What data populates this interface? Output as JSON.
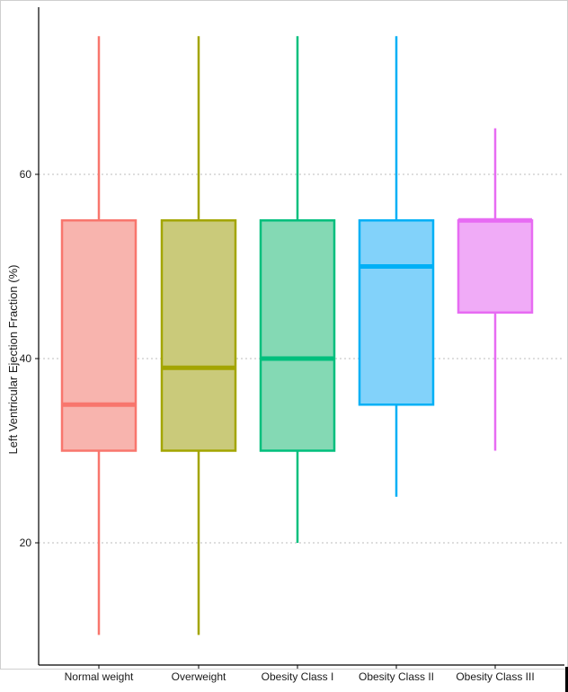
{
  "chart_data": {
    "type": "box",
    "ylabel": "Left Ventricular Ejection Fraction (%)",
    "xlabel": "",
    "ylim": [
      5,
      78
    ],
    "yticks": [
      20,
      40,
      60
    ],
    "grid": "horizontal dotted at y ticks",
    "categories": [
      "Normal weight",
      "Overweight",
      "Obesity Class I",
      "Obesity Class II",
      "Obesity Class III"
    ],
    "boxes": [
      {
        "category": "Normal weight",
        "whisker_low": 10,
        "q1": 30,
        "median": 35,
        "q3": 55,
        "whisker_high": 75,
        "color": "#F8766D",
        "fill": "#F8B4AE"
      },
      {
        "category": "Overweight",
        "whisker_low": 10,
        "q1": 30,
        "median": 39,
        "q3": 55,
        "whisker_high": 75,
        "color": "#A3A500",
        "fill": "#CACA7A"
      },
      {
        "category": "Obesity Class I",
        "whisker_low": 20,
        "q1": 30,
        "median": 40,
        "q3": 55,
        "whisker_high": 75,
        "color": "#00BF7D",
        "fill": "#84D9B4"
      },
      {
        "category": "Obesity Class II",
        "whisker_low": 25,
        "q1": 35,
        "median": 50,
        "q3": 55,
        "whisker_high": 75,
        "color": "#00B0F6",
        "fill": "#82D2FA"
      },
      {
        "category": "Obesity Class III",
        "whisker_low": 30,
        "q1": 45,
        "median": 55,
        "q3": 55,
        "whisker_high": 65,
        "color": "#E76BF3",
        "fill": "#F0ABF7"
      }
    ]
  }
}
